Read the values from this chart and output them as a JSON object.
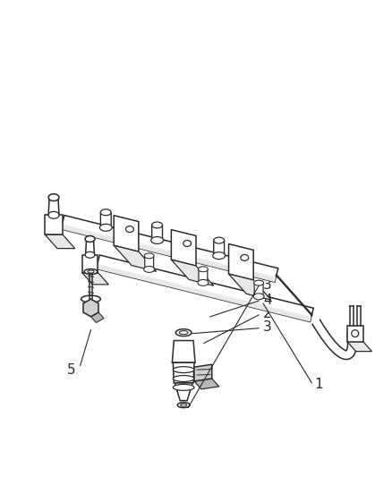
{
  "bg_color": "#ffffff",
  "line_color": "#2a2a2a",
  "fig_width": 4.39,
  "fig_height": 5.33,
  "dpi": 100,
  "rail_color": "#ffffff",
  "shade_color": "#e8e8e8",
  "bolt_color": "#d0d0d0"
}
